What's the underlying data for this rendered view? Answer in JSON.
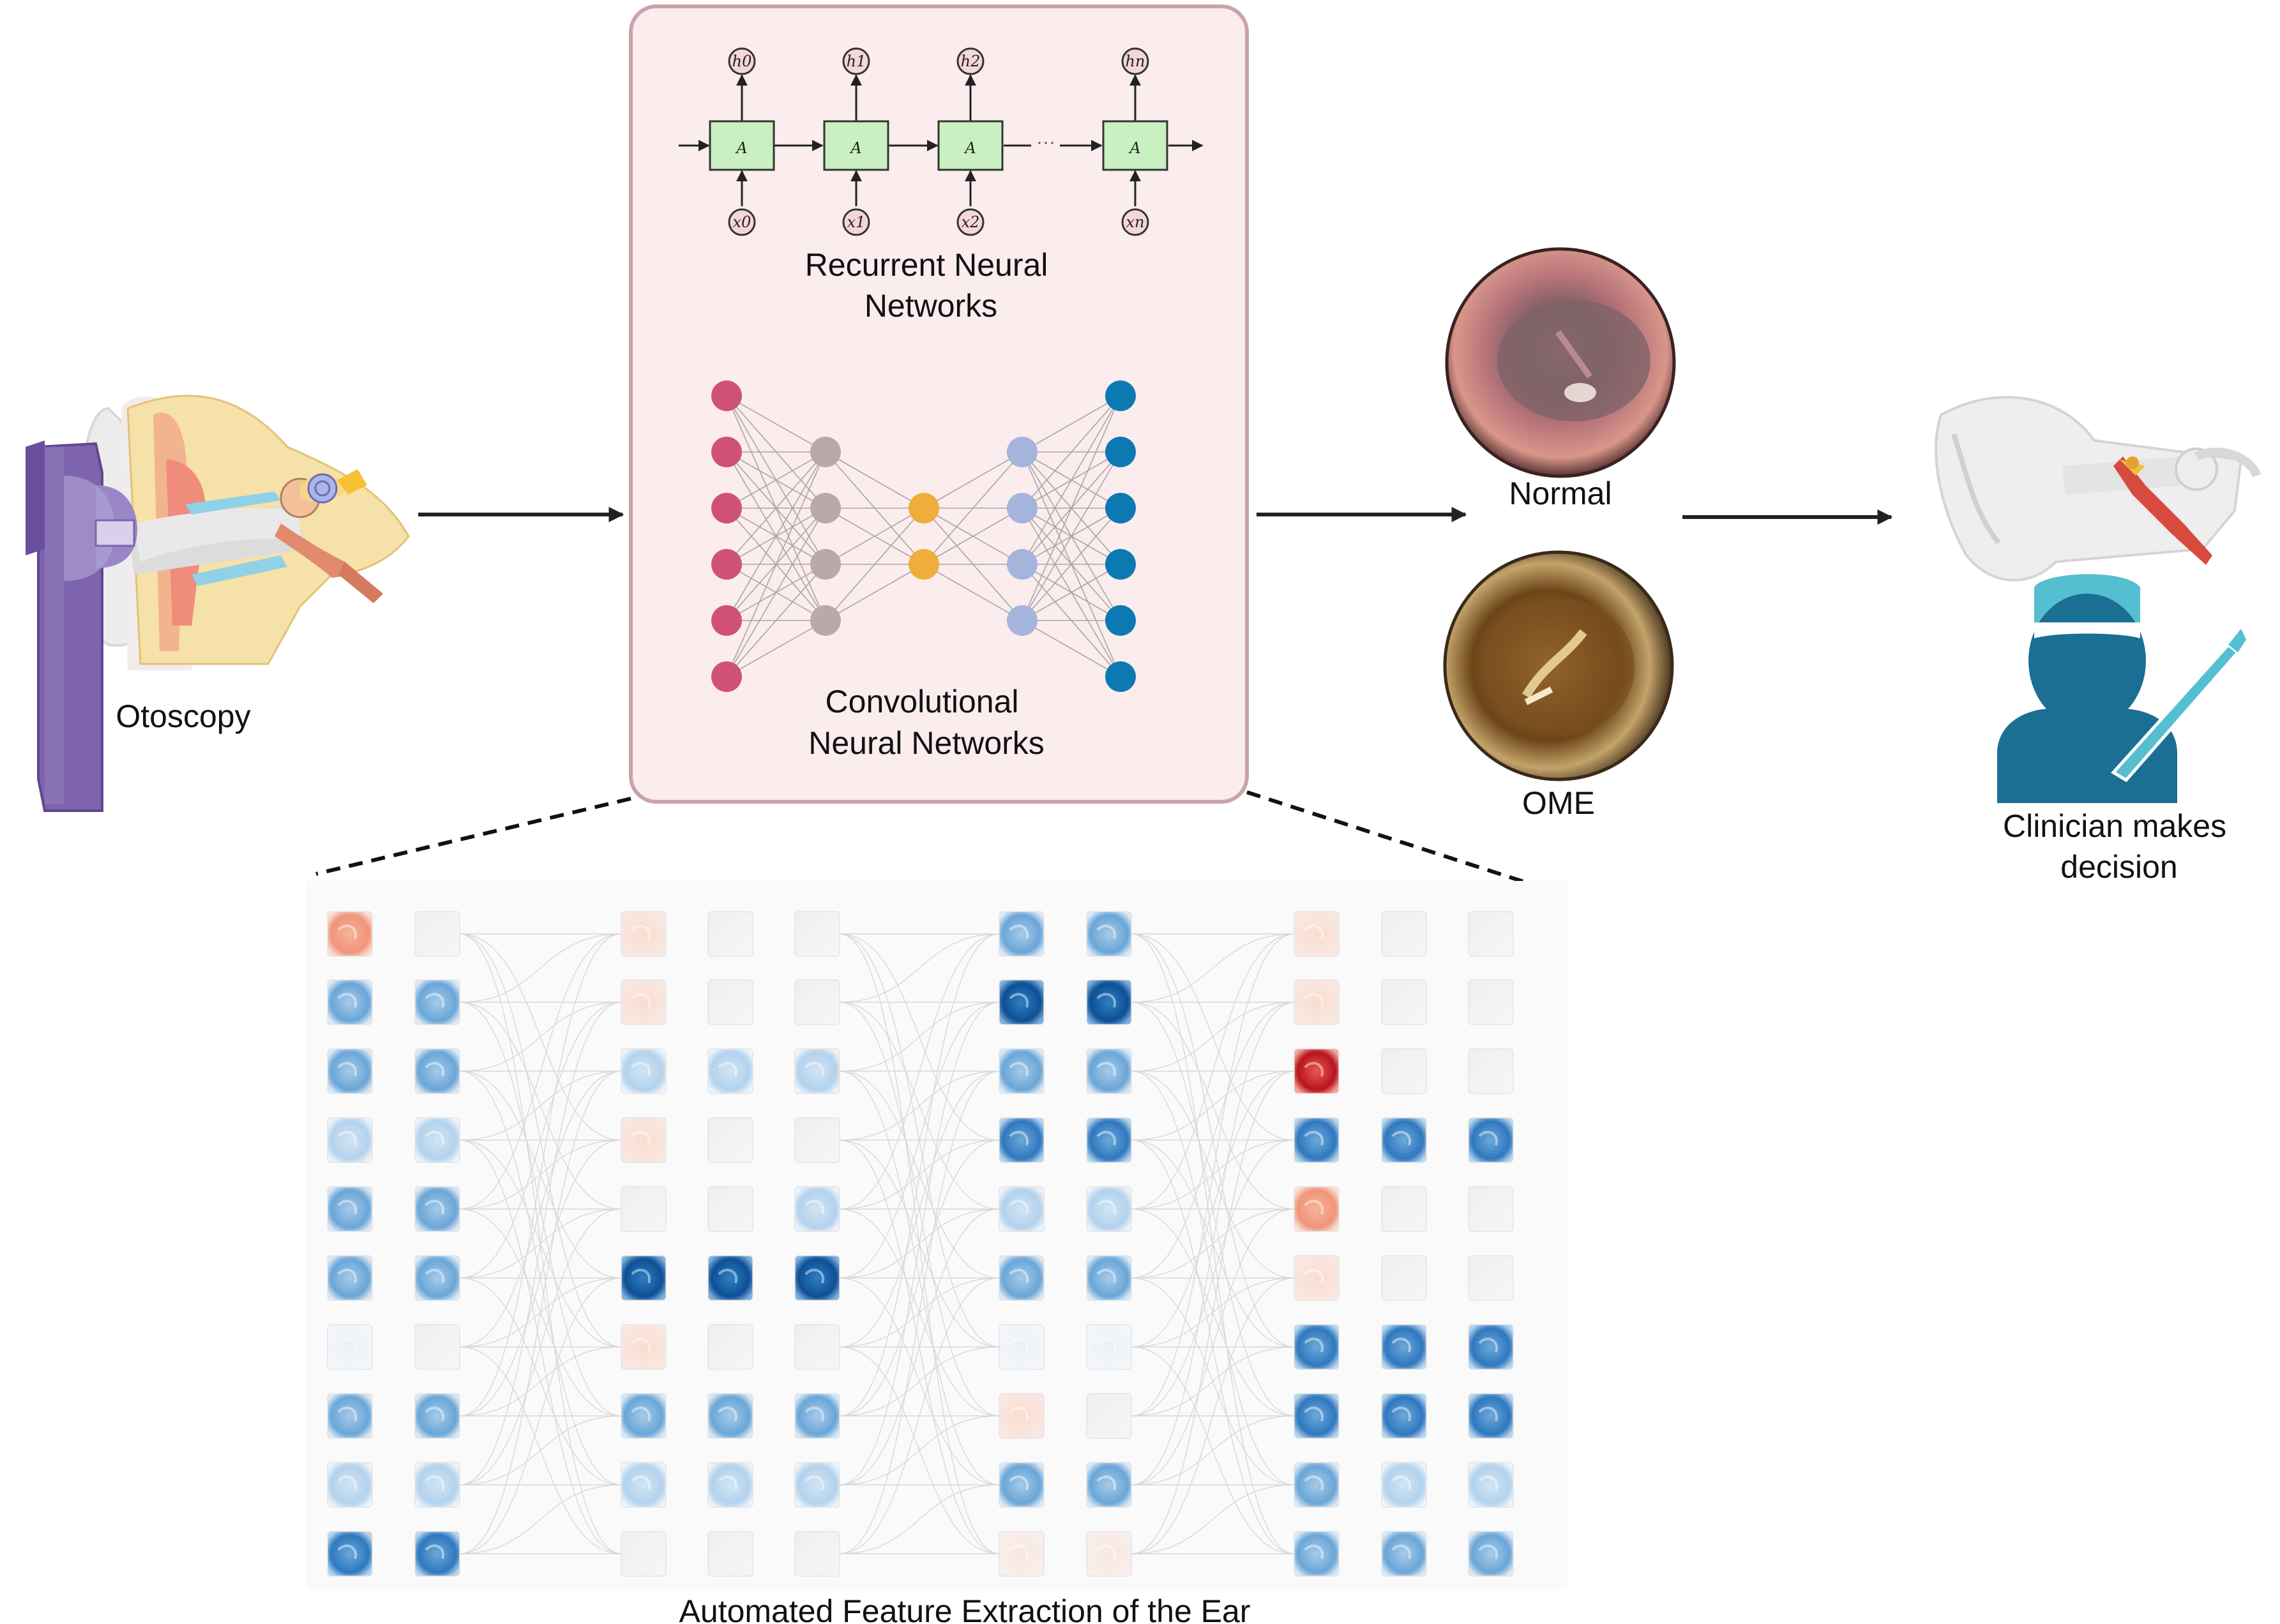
{
  "labels": {
    "otoscopy": "Otoscopy",
    "rnn": [
      "Recurrent Neural",
      "Networks"
    ],
    "cnn": [
      "Convolutional",
      "Neural Networks"
    ],
    "normal": "Normal",
    "ome": "OME",
    "clinician": [
      "Clinician makes",
      "decision"
    ],
    "feature_extraction": "Automated Feature Extraction of the Ear"
  },
  "rnn": {
    "cell_label": "A",
    "hidden_states": [
      "h0",
      "h1",
      "h2",
      "hn"
    ],
    "inputs": [
      "x0",
      "x1",
      "x2",
      "xn"
    ]
  },
  "colors": {
    "panel_bg": "#fbecee",
    "panel_border": "#c9a3ab",
    "rnn_cell": "#c9f0c0",
    "node_input": "#cf5276",
    "node_hidden1": "#bba9aa",
    "node_bottleneck": "#efad3c",
    "node_hidden2": "#a4b4dc",
    "node_output": "#0d79b3",
    "otoscope": "#7d64ad",
    "clinician": "#1a6f93",
    "cap": "#54bfd0"
  },
  "feature_map_grid": {
    "rows": 10,
    "column_groups": [
      [
        [
          "r2",
          "b2",
          "b2",
          "b1",
          "b2",
          "b2",
          "b0",
          "b2",
          "b1",
          "b3"
        ],
        [
          "g",
          "b2",
          "b2",
          "b1",
          "b2",
          "b2",
          "g",
          "b2",
          "b1",
          "b3"
        ]
      ],
      [
        [
          "r1",
          "r1",
          "b1",
          "r1",
          "g",
          "b4",
          "r1",
          "b2",
          "b1",
          "g"
        ],
        [
          "g",
          "g",
          "b1",
          "g",
          "g",
          "b4",
          "g",
          "b2",
          "b1",
          "g"
        ],
        [
          "g",
          "g",
          "b1",
          "g",
          "b1",
          "b4",
          "g",
          "b2",
          "b1",
          "g"
        ]
      ],
      [
        [
          "b2",
          "b4",
          "b2",
          "b3",
          "b1",
          "b2",
          "b0",
          "r1",
          "b2",
          "r0"
        ],
        [
          "b2",
          "b4",
          "b2",
          "b3",
          "b1",
          "b2",
          "b0",
          "g",
          "b2",
          "r0"
        ]
      ],
      [
        [
          "r1",
          "r1",
          "r3",
          "b3",
          "r2",
          "r1",
          "b3",
          "b3",
          "b2",
          "b2"
        ],
        [
          "g",
          "g",
          "g",
          "b3",
          "g",
          "g",
          "b3",
          "b3",
          "b1",
          "b2"
        ],
        [
          "g",
          "g",
          "g",
          "b3",
          "g",
          "g",
          "b3",
          "b3",
          "b1",
          "b2"
        ]
      ]
    ]
  }
}
